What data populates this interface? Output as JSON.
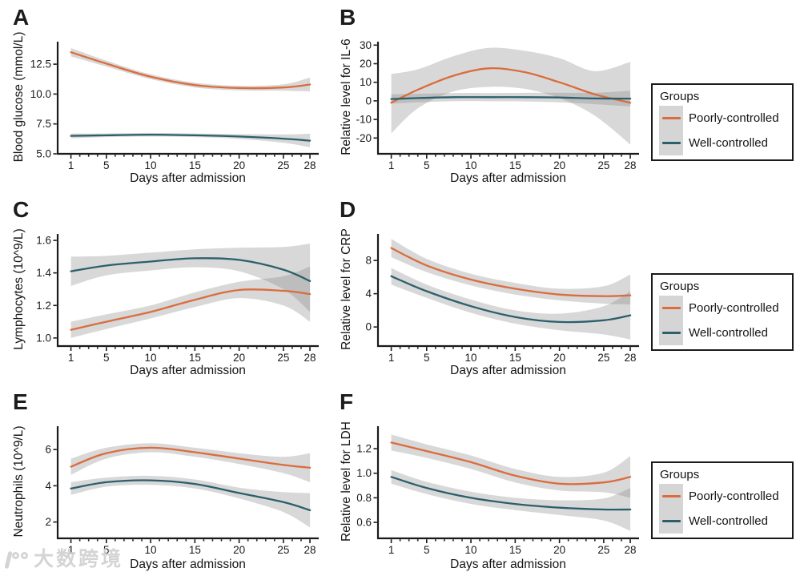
{
  "watermark": {
    "logo_icon": "100-logo-icon",
    "text": "大数跨境"
  },
  "legend": {
    "title": "Groups",
    "key_background": "#D5D5D5",
    "items": [
      {
        "label": "Poorly-controlled",
        "color": "#DB6C3E"
      },
      {
        "label": "Well-controlled",
        "color": "#2C5F6C"
      }
    ]
  },
  "axis": {
    "xlabel": "Days after admission",
    "xticks": [
      1,
      5,
      10,
      15,
      20,
      25,
      28
    ],
    "xtick_labels": [
      "1",
      "5",
      "10",
      "15",
      "20",
      "25",
      "28"
    ],
    "xlim": [
      -0.5,
      28.9
    ],
    "band_color": "rgba(127,127,127,0.30)",
    "axis_color": "#1a1a1a"
  },
  "chart_data": [
    {
      "letter": "A",
      "type": "line",
      "ylabel": "Blood glucose (mmol/L)",
      "xlabel": "Days after admission",
      "ylim": [
        5.0,
        14.25
      ],
      "yticks": [
        5.0,
        7.5,
        10.0,
        12.5
      ],
      "ytick_labels": [
        "5.0",
        "7.5",
        "10.0",
        "12.5"
      ],
      "x": [
        1,
        5,
        10,
        15,
        20,
        25,
        28
      ],
      "series": [
        {
          "name": "Poorly-controlled",
          "color": "#DB6C3E",
          "y": [
            13.5,
            12.55,
            11.45,
            10.75,
            10.5,
            10.55,
            10.8
          ],
          "lower": [
            13.15,
            12.3,
            11.25,
            10.55,
            10.3,
            10.28,
            10.22
          ],
          "upper": [
            13.85,
            12.8,
            11.65,
            10.95,
            10.7,
            10.82,
            11.38
          ]
        },
        {
          "name": "Well-controlled",
          "color": "#2C5F6C",
          "y": [
            6.5,
            6.55,
            6.6,
            6.55,
            6.45,
            6.27,
            6.1
          ],
          "lower": [
            6.3,
            6.4,
            6.45,
            6.4,
            6.25,
            5.92,
            5.55
          ],
          "upper": [
            6.7,
            6.7,
            6.75,
            6.7,
            6.65,
            6.62,
            6.68
          ]
        }
      ]
    },
    {
      "letter": "B",
      "type": "line",
      "ylabel": "Relative level for IL-6",
      "xlabel": "Days after admission",
      "ylim": [
        -28.5,
        31
      ],
      "yticks": [
        -20,
        -10,
        0,
        10,
        20,
        30
      ],
      "ytick_labels": [
        "-20",
        "-10",
        "0",
        "10",
        "20",
        "30"
      ],
      "x": [
        1,
        4,
        8,
        12,
        16,
        20,
        24,
        28
      ],
      "series": [
        {
          "name": "Poorly-controlled",
          "color": "#DB6C3E",
          "y": [
            -1,
            6,
            13.5,
            17.5,
            15.5,
            10,
            3.5,
            -1
          ],
          "lower": [
            -17.5,
            -4,
            5,
            7.5,
            6.5,
            1.5,
            -8,
            -23.5
          ],
          "upper": [
            14.5,
            17,
            24,
            28.5,
            27,
            23,
            16,
            21
          ]
        },
        {
          "name": "Well-controlled",
          "color": "#2C5F6C",
          "y": [
            1,
            1.5,
            2,
            2,
            2,
            1.8,
            1.3,
            1.2
          ],
          "lower": [
            -1.5,
            -0.8,
            -0.2,
            -0.2,
            -0.3,
            -0.8,
            -1.8,
            -3
          ],
          "upper": [
            3.5,
            3.8,
            4.2,
            4.2,
            4.3,
            4.4,
            4.4,
            5.4
          ]
        }
      ]
    },
    {
      "letter": "C",
      "type": "line",
      "ylabel": "Lymphocytes (10^9/L)",
      "xlabel": "Days after admission",
      "ylim": [
        0.95,
        1.63
      ],
      "yticks": [
        1.0,
        1.2,
        1.4,
        1.6
      ],
      "ytick_labels": [
        "1.0",
        "1.2",
        "1.4",
        "1.6"
      ],
      "x": [
        1,
        5,
        10,
        15,
        20,
        25,
        28
      ],
      "series": [
        {
          "name": "Poorly-controlled",
          "color": "#DB6C3E",
          "y": [
            1.05,
            1.1,
            1.16,
            1.235,
            1.295,
            1.29,
            1.27
          ],
          "lower": [
            1.0,
            1.055,
            1.12,
            1.19,
            1.245,
            1.2,
            1.1
          ],
          "upper": [
            1.1,
            1.145,
            1.2,
            1.28,
            1.345,
            1.38,
            1.44
          ]
        },
        {
          "name": "Well-controlled",
          "color": "#2C5F6C",
          "y": [
            1.41,
            1.445,
            1.47,
            1.49,
            1.48,
            1.42,
            1.35
          ],
          "lower": [
            1.32,
            1.385,
            1.415,
            1.435,
            1.41,
            1.3,
            1.16
          ],
          "upper": [
            1.5,
            1.505,
            1.525,
            1.545,
            1.555,
            1.56,
            1.58
          ]
        }
      ]
    },
    {
      "letter": "D",
      "type": "line",
      "ylabel": "Relative level for CRP",
      "xlabel": "Days after admission",
      "ylim": [
        -2.3,
        11.0
      ],
      "yticks": [
        0,
        4,
        8
      ],
      "ytick_labels": [
        "0",
        "4",
        "8"
      ],
      "x": [
        1,
        5,
        10,
        15,
        20,
        25,
        28
      ],
      "series": [
        {
          "name": "Poorly-controlled",
          "color": "#DB6C3E",
          "y": [
            9.5,
            7.4,
            5.7,
            4.6,
            3.9,
            3.7,
            3.8
          ],
          "lower": [
            8.4,
            6.6,
            5.0,
            3.9,
            3.2,
            2.8,
            2.7
          ],
          "upper": [
            10.6,
            8.2,
            6.4,
            5.3,
            4.6,
            4.9,
            6.3
          ]
        },
        {
          "name": "Well-controlled",
          "color": "#2C5F6C",
          "y": [
            6.1,
            4.3,
            2.5,
            1.2,
            0.6,
            0.8,
            1.4
          ],
          "lower": [
            5.1,
            3.5,
            1.7,
            0.4,
            -0.4,
            -0.9,
            -1.5
          ],
          "upper": [
            7.1,
            5.1,
            3.3,
            2.0,
            1.6,
            2.5,
            4.3
          ]
        }
      ]
    },
    {
      "letter": "E",
      "type": "line",
      "ylabel": "Neutrophils (10^9/L)",
      "xlabel": "Days after admission",
      "ylim": [
        1.1,
        7.2
      ],
      "yticks": [
        2,
        4,
        6
      ],
      "ytick_labels": [
        "2",
        "4",
        "6"
      ],
      "x": [
        1,
        5,
        10,
        15,
        20,
        25,
        28
      ],
      "series": [
        {
          "name": "Poorly-controlled",
          "color": "#DB6C3E",
          "y": [
            5.05,
            5.8,
            6.1,
            5.85,
            5.5,
            5.15,
            5.0
          ],
          "lower": [
            4.6,
            5.5,
            5.85,
            5.6,
            5.2,
            4.7,
            4.2
          ],
          "upper": [
            5.5,
            6.1,
            6.35,
            6.1,
            5.8,
            5.6,
            5.8
          ]
        },
        {
          "name": "Well-controlled",
          "color": "#2C5F6C",
          "y": [
            3.85,
            4.2,
            4.3,
            4.1,
            3.6,
            3.1,
            2.65
          ],
          "lower": [
            3.5,
            3.95,
            4.05,
            3.85,
            3.3,
            2.55,
            1.7
          ],
          "upper": [
            4.2,
            4.45,
            4.55,
            4.35,
            3.9,
            3.65,
            3.6
          ]
        }
      ]
    },
    {
      "letter": "F",
      "type": "line",
      "ylabel": "Relative level for LDH",
      "xlabel": "Days after admission",
      "ylim": [
        0.47,
        1.37
      ],
      "yticks": [
        0.6,
        0.8,
        1.0,
        1.2
      ],
      "ytick_labels": [
        "0.6",
        "0.8",
        "1.0",
        "1.2"
      ],
      "x": [
        1,
        5,
        10,
        15,
        20,
        25,
        28
      ],
      "series": [
        {
          "name": "Poorly-controlled",
          "color": "#DB6C3E",
          "y": [
            1.25,
            1.18,
            1.09,
            0.98,
            0.915,
            0.925,
            0.97
          ],
          "lower": [
            1.185,
            1.125,
            1.035,
            0.925,
            0.86,
            0.845,
            0.8
          ],
          "upper": [
            1.315,
            1.235,
            1.145,
            1.035,
            0.97,
            1.005,
            1.14
          ]
        },
        {
          "name": "Well-controlled",
          "color": "#2C5F6C",
          "y": [
            0.97,
            0.88,
            0.8,
            0.75,
            0.72,
            0.705,
            0.705
          ],
          "lower": [
            0.915,
            0.83,
            0.75,
            0.7,
            0.66,
            0.615,
            0.53
          ],
          "upper": [
            1.025,
            0.93,
            0.85,
            0.8,
            0.78,
            0.795,
            0.88
          ]
        }
      ]
    }
  ]
}
